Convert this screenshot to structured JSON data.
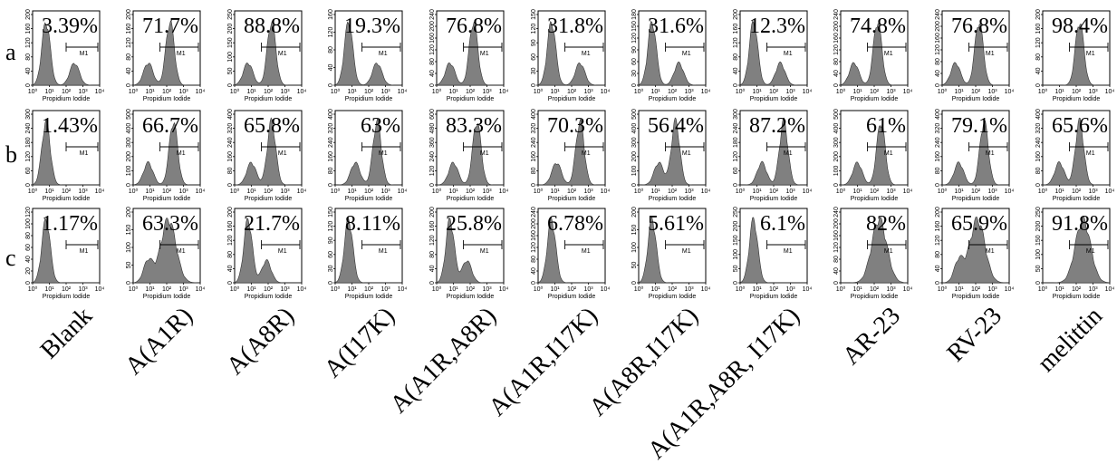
{
  "rows": [
    "a",
    "b",
    "c"
  ],
  "samples": [
    "Blank",
    "A(A1R)",
    "A(A8R)",
    "A(I17K)",
    "A(A1R,A8R)",
    "A(A1R,I17K)",
    "A(A8R,I17K)",
    "A(A1R,A8R, I17K)",
    "AR-23",
    "RV-23",
    "melittin"
  ],
  "axis_label": "Propidium Iodide",
  "gate_label": "M1",
  "x_ticks": [
    "10⁰",
    "10¹",
    "10²",
    "10³",
    "10⁴"
  ],
  "chart_data": {
    "type": "histogram",
    "x_scale": "log",
    "x_range": [
      1,
      10000
    ],
    "xlabel": "Propidium Iodide",
    "gate": "M1",
    "rows": [
      {
        "row": "a",
        "percentages": [
          "3.39%",
          "71.7%",
          "88.8%",
          "19.3%",
          "76.8%",
          "31.8%",
          "31.6%",
          "12.3%",
          "74.8%",
          "76.8%",
          "98.4%"
        ],
        "y_ticks": [
          [
            "0",
            "40",
            "80",
            "120",
            "160",
            "200"
          ],
          [
            "0",
            "40",
            "80",
            "120",
            "160",
            "200"
          ],
          [
            "0",
            "50",
            "100",
            "150",
            "200",
            "250"
          ],
          [
            "0",
            "40",
            "80",
            "120",
            "160"
          ],
          [
            "0",
            "40",
            "80",
            "120",
            "160",
            "200",
            "240"
          ],
          [
            "0",
            "30",
            "60",
            "90",
            "120",
            "150"
          ],
          [
            "0",
            "30",
            "60",
            "90",
            "120",
            "150",
            "180"
          ],
          [
            "0",
            "40",
            "80",
            "120",
            "160",
            "200"
          ],
          [
            "0",
            "40",
            "80",
            "120",
            "160",
            "200",
            "240"
          ],
          [
            "0",
            "40",
            "80",
            "120",
            "160",
            "200",
            "240"
          ],
          [
            "0",
            "40",
            "80",
            "120",
            "160",
            "200"
          ]
        ]
      },
      {
        "row": "b",
        "percentages": [
          "1.43%",
          "66.7%",
          "65.8%",
          "63%",
          "83.3%",
          "70.3%",
          "56.4%",
          "87.2%",
          "61%",
          "79.1%",
          "65.6%"
        ],
        "y_ticks": [
          [
            "0",
            "60",
            "120",
            "180",
            "240",
            "300"
          ],
          [
            "0",
            "100",
            "200",
            "300",
            "400",
            "500"
          ],
          [
            "0",
            "80",
            "160",
            "240",
            "320",
            "400"
          ],
          [
            "0",
            "80",
            "160",
            "240",
            "320",
            "400"
          ],
          [
            "0",
            "120",
            "240",
            "360",
            "480",
            "600"
          ],
          [
            "0",
            "80",
            "160",
            "240",
            "320",
            "400"
          ],
          [
            "0",
            "100",
            "200",
            "300",
            "400",
            "500"
          ],
          [
            "0",
            "60",
            "120",
            "180",
            "240",
            "300"
          ],
          [
            "0",
            "100",
            "200",
            "300",
            "400",
            "500"
          ],
          [
            "0",
            "80",
            "160",
            "240",
            "320",
            "400"
          ],
          [
            "0",
            "80",
            "160",
            "240",
            "320",
            "400"
          ]
        ]
      },
      {
        "row": "c",
        "percentages": [
          "1.17%",
          "63.3%",
          "21.7%",
          "8.11%",
          "25.8%",
          "6.78%",
          "5.61%",
          "6.1%",
          "82%",
          "65.9%",
          "91.8%"
        ],
        "y_ticks": [
          [
            "0",
            "20",
            "40",
            "60",
            "80",
            "100",
            "120"
          ],
          [
            "0",
            "50",
            "100",
            "150",
            "200"
          ],
          [
            "0",
            "40",
            "80",
            "120",
            "160",
            "200"
          ],
          [
            "0",
            "30",
            "60",
            "90",
            "120",
            "150"
          ],
          [
            "0",
            "40",
            "80",
            "120",
            "160",
            "200"
          ],
          [
            "0",
            "40",
            "80",
            "120",
            "160",
            "200",
            "240"
          ],
          [
            "0",
            "50",
            "100",
            "150",
            "200"
          ],
          [
            "0",
            "50",
            "100",
            "150",
            "200",
            "250"
          ],
          [
            "0",
            "40",
            "80",
            "120",
            "160",
            "200",
            "240"
          ],
          [
            "0",
            "40",
            "80",
            "120",
            "160",
            "200"
          ],
          [
            "0",
            "50",
            "100",
            "150",
            "200",
            "250"
          ]
        ]
      }
    ],
    "peak_log": {
      "a": [
        0.8,
        2.2,
        2.2,
        0.8,
        2.2,
        0.8,
        0.8,
        0.8,
        2.2,
        2.2,
        2.2
      ],
      "b": [
        0.8,
        2.4,
        2.2,
        2.5,
        2.4,
        2.5,
        2.2,
        2.6,
        2.4,
        2.5,
        2.2
      ],
      "c": [
        0.8,
        2.1,
        0.8,
        0.8,
        0.8,
        0.8,
        0.8,
        0.8,
        2.3,
        2.1,
        2.4
      ]
    },
    "secondary_log": {
      "a": [
        2.5,
        0.9,
        0.8,
        2.5,
        0.8,
        2.5,
        2.4,
        2.4,
        0.8,
        0.8,
        null
      ],
      "b": [
        null,
        0.9,
        1.0,
        1.2,
        1.0,
        1.1,
        1.2,
        1.3,
        1.0,
        1.0,
        1.0
      ],
      "c": [
        null,
        0.9,
        1.9,
        null,
        1.8,
        null,
        null,
        null,
        null,
        1.0,
        null
      ]
    }
  }
}
